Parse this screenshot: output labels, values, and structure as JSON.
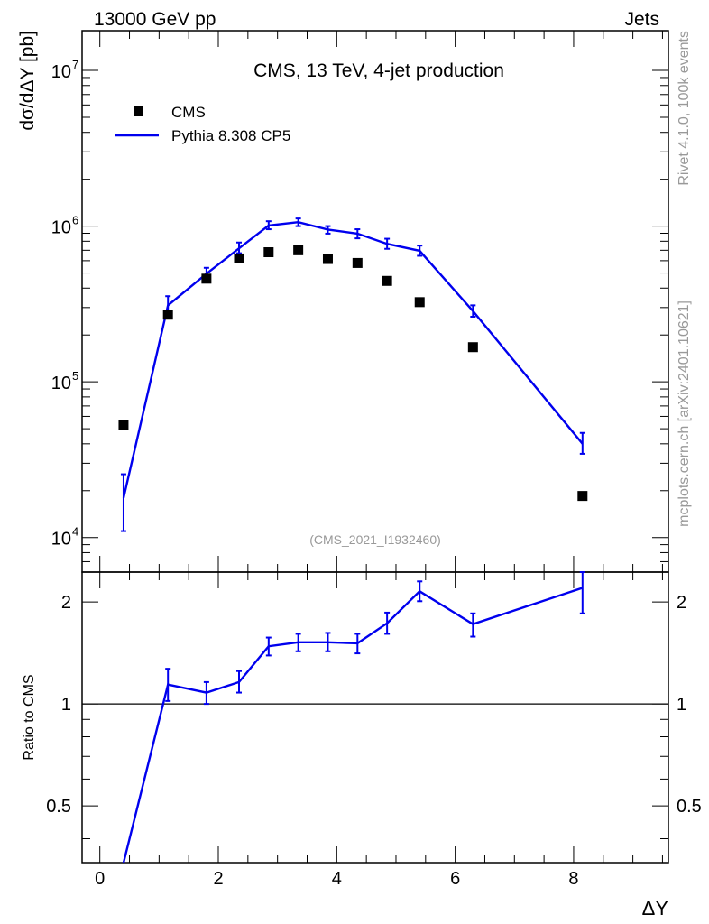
{
  "header": {
    "left": "13000 GeV pp",
    "right": "Jets"
  },
  "side_text": {
    "top": "Rivet 4.1.0,  100k events",
    "bottom": "mcplots.cern.ch [arXiv:2401.10621]"
  },
  "colors": {
    "mc": "#0000ee",
    "data": "#000000",
    "watermark": "#999999"
  },
  "chart_data": [
    {
      "type": "scatter",
      "title": "CMS, 13 TeV, 4-jet production",
      "watermark": "(CMS_2021_I1932460)",
      "xlabel": "",
      "ylabel": "dσ/dΔY [pb]",
      "yscale": "log",
      "xlim": [
        -0.3,
        9.6
      ],
      "ylim": [
        6000,
        18000000
      ],
      "yticks": [
        {
          "v": 10000,
          "exp": "4"
        },
        {
          "v": 100000,
          "exp": "5"
        },
        {
          "v": 1000000,
          "exp": "6"
        },
        {
          "v": 10000000,
          "exp": "7"
        }
      ],
      "legend": [
        {
          "label": "CMS",
          "kind": "marker"
        },
        {
          "label": "Pythia 8.308 CP5",
          "kind": "line"
        }
      ],
      "series": [
        {
          "name": "CMS",
          "kind": "points",
          "x": [
            0.4,
            1.15,
            1.8,
            2.35,
            2.85,
            3.35,
            3.85,
            4.35,
            4.85,
            5.4,
            6.3,
            8.15
          ],
          "y": [
            53000,
            270000,
            460000,
            620000,
            680000,
            700000,
            615000,
            580000,
            445000,
            325000,
            167000,
            18500
          ]
        },
        {
          "name": "Pythia 8.308 CP5",
          "kind": "line",
          "x": [
            0.4,
            1.15,
            1.8,
            2.35,
            2.85,
            3.35,
            3.85,
            4.35,
            4.85,
            5.4,
            6.3,
            8.15
          ],
          "y": [
            18000,
            310000,
            495000,
            720000,
            1010000,
            1060000,
            950000,
            895000,
            770000,
            695000,
            285000,
            40000
          ],
          "ylo": [
            11000,
            280000,
            460000,
            670000,
            955000,
            1000000,
            895000,
            835000,
            715000,
            645000,
            262000,
            34500
          ],
          "yhi": [
            25500,
            355000,
            540000,
            785000,
            1075000,
            1120000,
            1000000,
            955000,
            830000,
            750000,
            310000,
            47000
          ]
        }
      ]
    },
    {
      "type": "line",
      "xlabel": "ΔY",
      "ylabel": "Ratio to CMS",
      "yscale": "log",
      "xlim": [
        -0.3,
        9.6
      ],
      "ylim": [
        0.34,
        2.45
      ],
      "xticks": [
        0,
        2,
        4,
        6,
        8
      ],
      "yticks": [
        0.5,
        1,
        2
      ],
      "reference": 1,
      "series": [
        {
          "name": "Pythia 8.308 CP5 / CMS",
          "x": [
            0.4,
            1.15,
            1.8,
            2.35,
            2.85,
            3.35,
            3.85,
            4.35,
            4.85,
            5.4,
            6.3,
            8.15
          ],
          "y": [
            0.34,
            1.14,
            1.08,
            1.16,
            1.48,
            1.52,
            1.52,
            1.51,
            1.73,
            2.15,
            1.72,
            2.2
          ],
          "ylo": [
            null,
            1.02,
            1.0,
            1.08,
            1.39,
            1.43,
            1.43,
            1.41,
            1.61,
            2.01,
            1.58,
            1.85
          ],
          "yhi": [
            null,
            1.27,
            1.16,
            1.25,
            1.57,
            1.61,
            1.62,
            1.61,
            1.86,
            2.3,
            1.85,
            2.45
          ]
        }
      ]
    }
  ]
}
